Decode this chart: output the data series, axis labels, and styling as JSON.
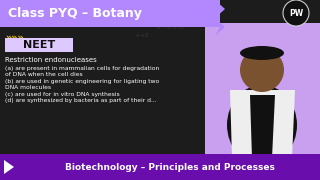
{
  "title": "Class PYQ – Botany",
  "tag": "NEET",
  "topic": "Biotechnology – Principles and Processes",
  "question_title": "Restriction endonucleases",
  "options": [
    "(a) are present in mammalian cells for degradation",
    "of DNA when the cell dies",
    "(b) are used in genetic engineering for ligating two",
    "DNA molecules",
    "(c) are used for in vitro DNA synthesis",
    "(d) are synthesized by bacteria as part of their d..."
  ],
  "blackboard_color": "#1c1c1c",
  "purple_header": "#b388ff",
  "neet_bg": "#ddc8ff",
  "neet_text": "#111111",
  "title_text_color": "#ffffff",
  "bottom_bar_color": "#6a0dad",
  "bottom_text_color": "#ffffff",
  "main_text_color": "#ffffff",
  "right_panel_color": "#c9a0f0",
  "chevron_color": "#ffcc00"
}
